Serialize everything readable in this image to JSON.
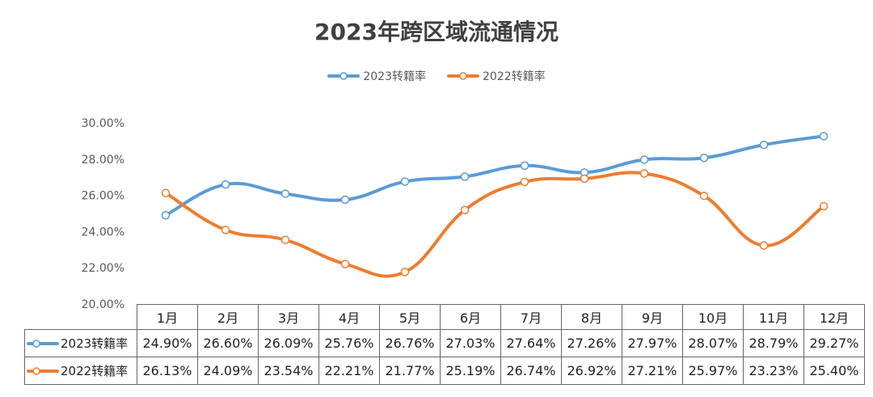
{
  "chart_data": {
    "type": "line",
    "title": "2023年跨区域流通情况",
    "categories": [
      "1月",
      "2月",
      "3月",
      "4月",
      "5月",
      "6月",
      "7月",
      "8月",
      "9月",
      "10月",
      "11月",
      "12月"
    ],
    "series": [
      {
        "name": "2023转籍率",
        "color": "#5B9BD5",
        "values": [
          24.9,
          26.6,
          26.09,
          25.76,
          26.76,
          27.03,
          27.64,
          27.26,
          27.97,
          28.07,
          28.79,
          29.27
        ],
        "labels": [
          "24.90%",
          "26.60%",
          "26.09%",
          "25.76%",
          "26.76%",
          "27.03%",
          "27.64%",
          "27.26%",
          "27.97%",
          "28.07%",
          "28.79%",
          "29.27%"
        ]
      },
      {
        "name": "2022转籍率",
        "color": "#ED7D31",
        "values": [
          26.13,
          24.09,
          23.54,
          22.21,
          21.77,
          25.19,
          26.74,
          26.92,
          27.21,
          25.97,
          23.23,
          25.4
        ],
        "labels": [
          "26.13%",
          "24.09%",
          "23.54%",
          "22.21%",
          "21.77%",
          "25.19%",
          "26.74%",
          "26.92%",
          "27.21%",
          "25.97%",
          "23.23%",
          "25.40%"
        ]
      }
    ],
    "ylim": [
      20,
      30
    ],
    "yticks": [
      "20.00%",
      "22.00%",
      "24.00%",
      "26.00%",
      "28.00%",
      "30.00%"
    ],
    "yticks_values": [
      20,
      22,
      24,
      26,
      28,
      30
    ],
    "grid": false,
    "legend_position": "top-center",
    "data_table": true
  }
}
